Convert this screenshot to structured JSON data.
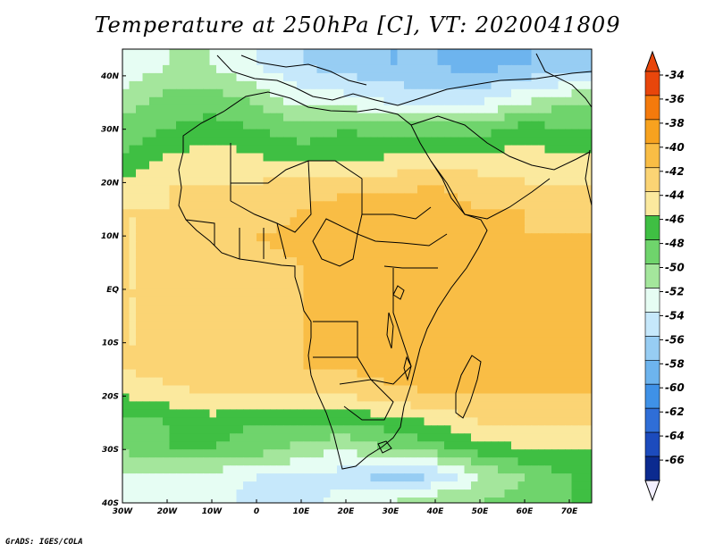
{
  "title": "Temperature at 250hPa [C], VT: 2020041809",
  "credit": "GrADS: IGES/COLA",
  "map": {
    "lat_labels": [
      "40N",
      "30N",
      "20N",
      "10N",
      "EQ",
      "10S",
      "20S",
      "30S",
      "40S"
    ],
    "lon_labels": [
      "30W",
      "20W",
      "10W",
      "0",
      "10E",
      "20E",
      "30E",
      "40E",
      "50E",
      "60E",
      "70E"
    ],
    "lat_range": [
      -40,
      45
    ],
    "lon_range": [
      -30,
      75
    ]
  },
  "colorbar": {
    "labels": [
      "-34",
      "-36",
      "-38",
      "-40",
      "-42",
      "-44",
      "-46",
      "-48",
      "-50",
      "-52",
      "-54",
      "-56",
      "-58",
      "-60",
      "-62",
      "-64",
      "-66"
    ],
    "colors": [
      "#e8460b",
      "#f47a0c",
      "#f7a21f",
      "#f9bd45",
      "#fbd474",
      "#fbe99e",
      "#3fbf43",
      "#6fd46c",
      "#a4e69c",
      "#e6fdf3",
      "#c6e8fb",
      "#97cdf3",
      "#6db4ee",
      "#3f91e7",
      "#2f6ed7",
      "#1c4bbd",
      "#0b2a8f"
    ],
    "top_color": "#e8460b",
    "bottom_color": "#f3f0ff"
  },
  "chart_data": {
    "type": "heatmap",
    "title": "Temperature at 250hPa [C], VT: 2020041809",
    "xlabel": "",
    "ylabel": "",
    "x_ticks": [
      "30W",
      "20W",
      "10W",
      "0",
      "10E",
      "20E",
      "30E",
      "40E",
      "50E",
      "60E",
      "70E"
    ],
    "y_ticks": [
      "40N",
      "30N",
      "20N",
      "10N",
      "EQ",
      "10S",
      "20S",
      "30S",
      "40S"
    ],
    "xlim": [
      -30,
      75
    ],
    "ylim": [
      -40,
      45
    ],
    "units": "C",
    "levels": [
      -66,
      -64,
      -62,
      -60,
      -58,
      -56,
      -54,
      -52,
      -50,
      -48,
      -46,
      -44,
      -42,
      -40,
      -38,
      -36,
      -34
    ],
    "rows": [
      {
        "lat": 42,
        "values": [
          -52,
          -50,
          -50,
          -52,
          -54,
          -55,
          -56,
          -56,
          -57,
          -56,
          -56
        ]
      },
      {
        "lat": 35,
        "values": [
          -49,
          -47,
          -47,
          -48,
          -51,
          -51,
          -52,
          -53,
          -52,
          -50,
          -48
        ]
      },
      {
        "lat": 30,
        "values": [
          -47,
          -46,
          -45,
          -46,
          -47,
          -46,
          -47,
          -47,
          -47,
          -45,
          -46
        ]
      },
      {
        "lat": 25,
        "values": [
          -46,
          -44,
          -43,
          -44,
          -45,
          -45,
          -44,
          -44,
          -44,
          -43,
          -44
        ]
      },
      {
        "lat": 20,
        "values": [
          -44,
          -42,
          -42,
          -42,
          -41,
          -41,
          -41,
          -40,
          -41,
          -42,
          -42
        ]
      },
      {
        "lat": 15,
        "values": [
          -42,
          -42,
          -42,
          -42,
          -40,
          -39,
          -39,
          -39,
          -40,
          -40,
          -41
        ]
      },
      {
        "lat": 10,
        "values": [
          -42,
          -42,
          -42,
          -40,
          -39,
          -39,
          -39,
          -39,
          -39,
          -40,
          -40
        ]
      },
      {
        "lat": 5,
        "values": [
          -42,
          -42,
          -42,
          -41,
          -40,
          -39,
          -39,
          -39,
          -39,
          -39,
          -40
        ]
      },
      {
        "lat": 0,
        "values": [
          -42,
          -42,
          -42,
          -41,
          -40,
          -39,
          -39,
          -39,
          -39,
          -39,
          -39
        ]
      },
      {
        "lat": -5,
        "values": [
          -42,
          -42,
          -41,
          -41,
          -40,
          -39,
          -39,
          -39,
          -39,
          -39,
          -39
        ]
      },
      {
        "lat": -10,
        "values": [
          -42,
          -42,
          -41,
          -41,
          -40,
          -40,
          -39,
          -39,
          -39,
          -39,
          -39
        ]
      },
      {
        "lat": -15,
        "values": [
          -42,
          -41,
          -40,
          -40,
          -40,
          -40,
          -39,
          -39,
          -39,
          -39,
          -39
        ]
      },
      {
        "lat": -20,
        "values": [
          -44,
          -43,
          -42,
          -42,
          -42,
          -42,
          -41,
          -40,
          -40,
          -40,
          -40
        ]
      },
      {
        "lat": -25,
        "values": [
          -47,
          -46,
          -45,
          -46,
          -46,
          -46,
          -45,
          -44,
          -42,
          -42,
          -42
        ]
      },
      {
        "lat": -30,
        "values": [
          -48,
          -46,
          -46,
          -47,
          -49,
          -50,
          -48,
          -47,
          -45,
          -44,
          -44
        ]
      },
      {
        "lat": -35,
        "values": [
          -50,
          -51,
          -51,
          -52,
          -52,
          -53,
          -55,
          -54,
          -50,
          -48,
          -46
        ]
      },
      {
        "lat": -40,
        "values": [
          -51,
          -50,
          -51,
          -53,
          -53,
          -51,
          -50,
          -48,
          -48,
          -47,
          -46
        ]
      }
    ],
    "grid": false,
    "legend": "right colorbar"
  }
}
